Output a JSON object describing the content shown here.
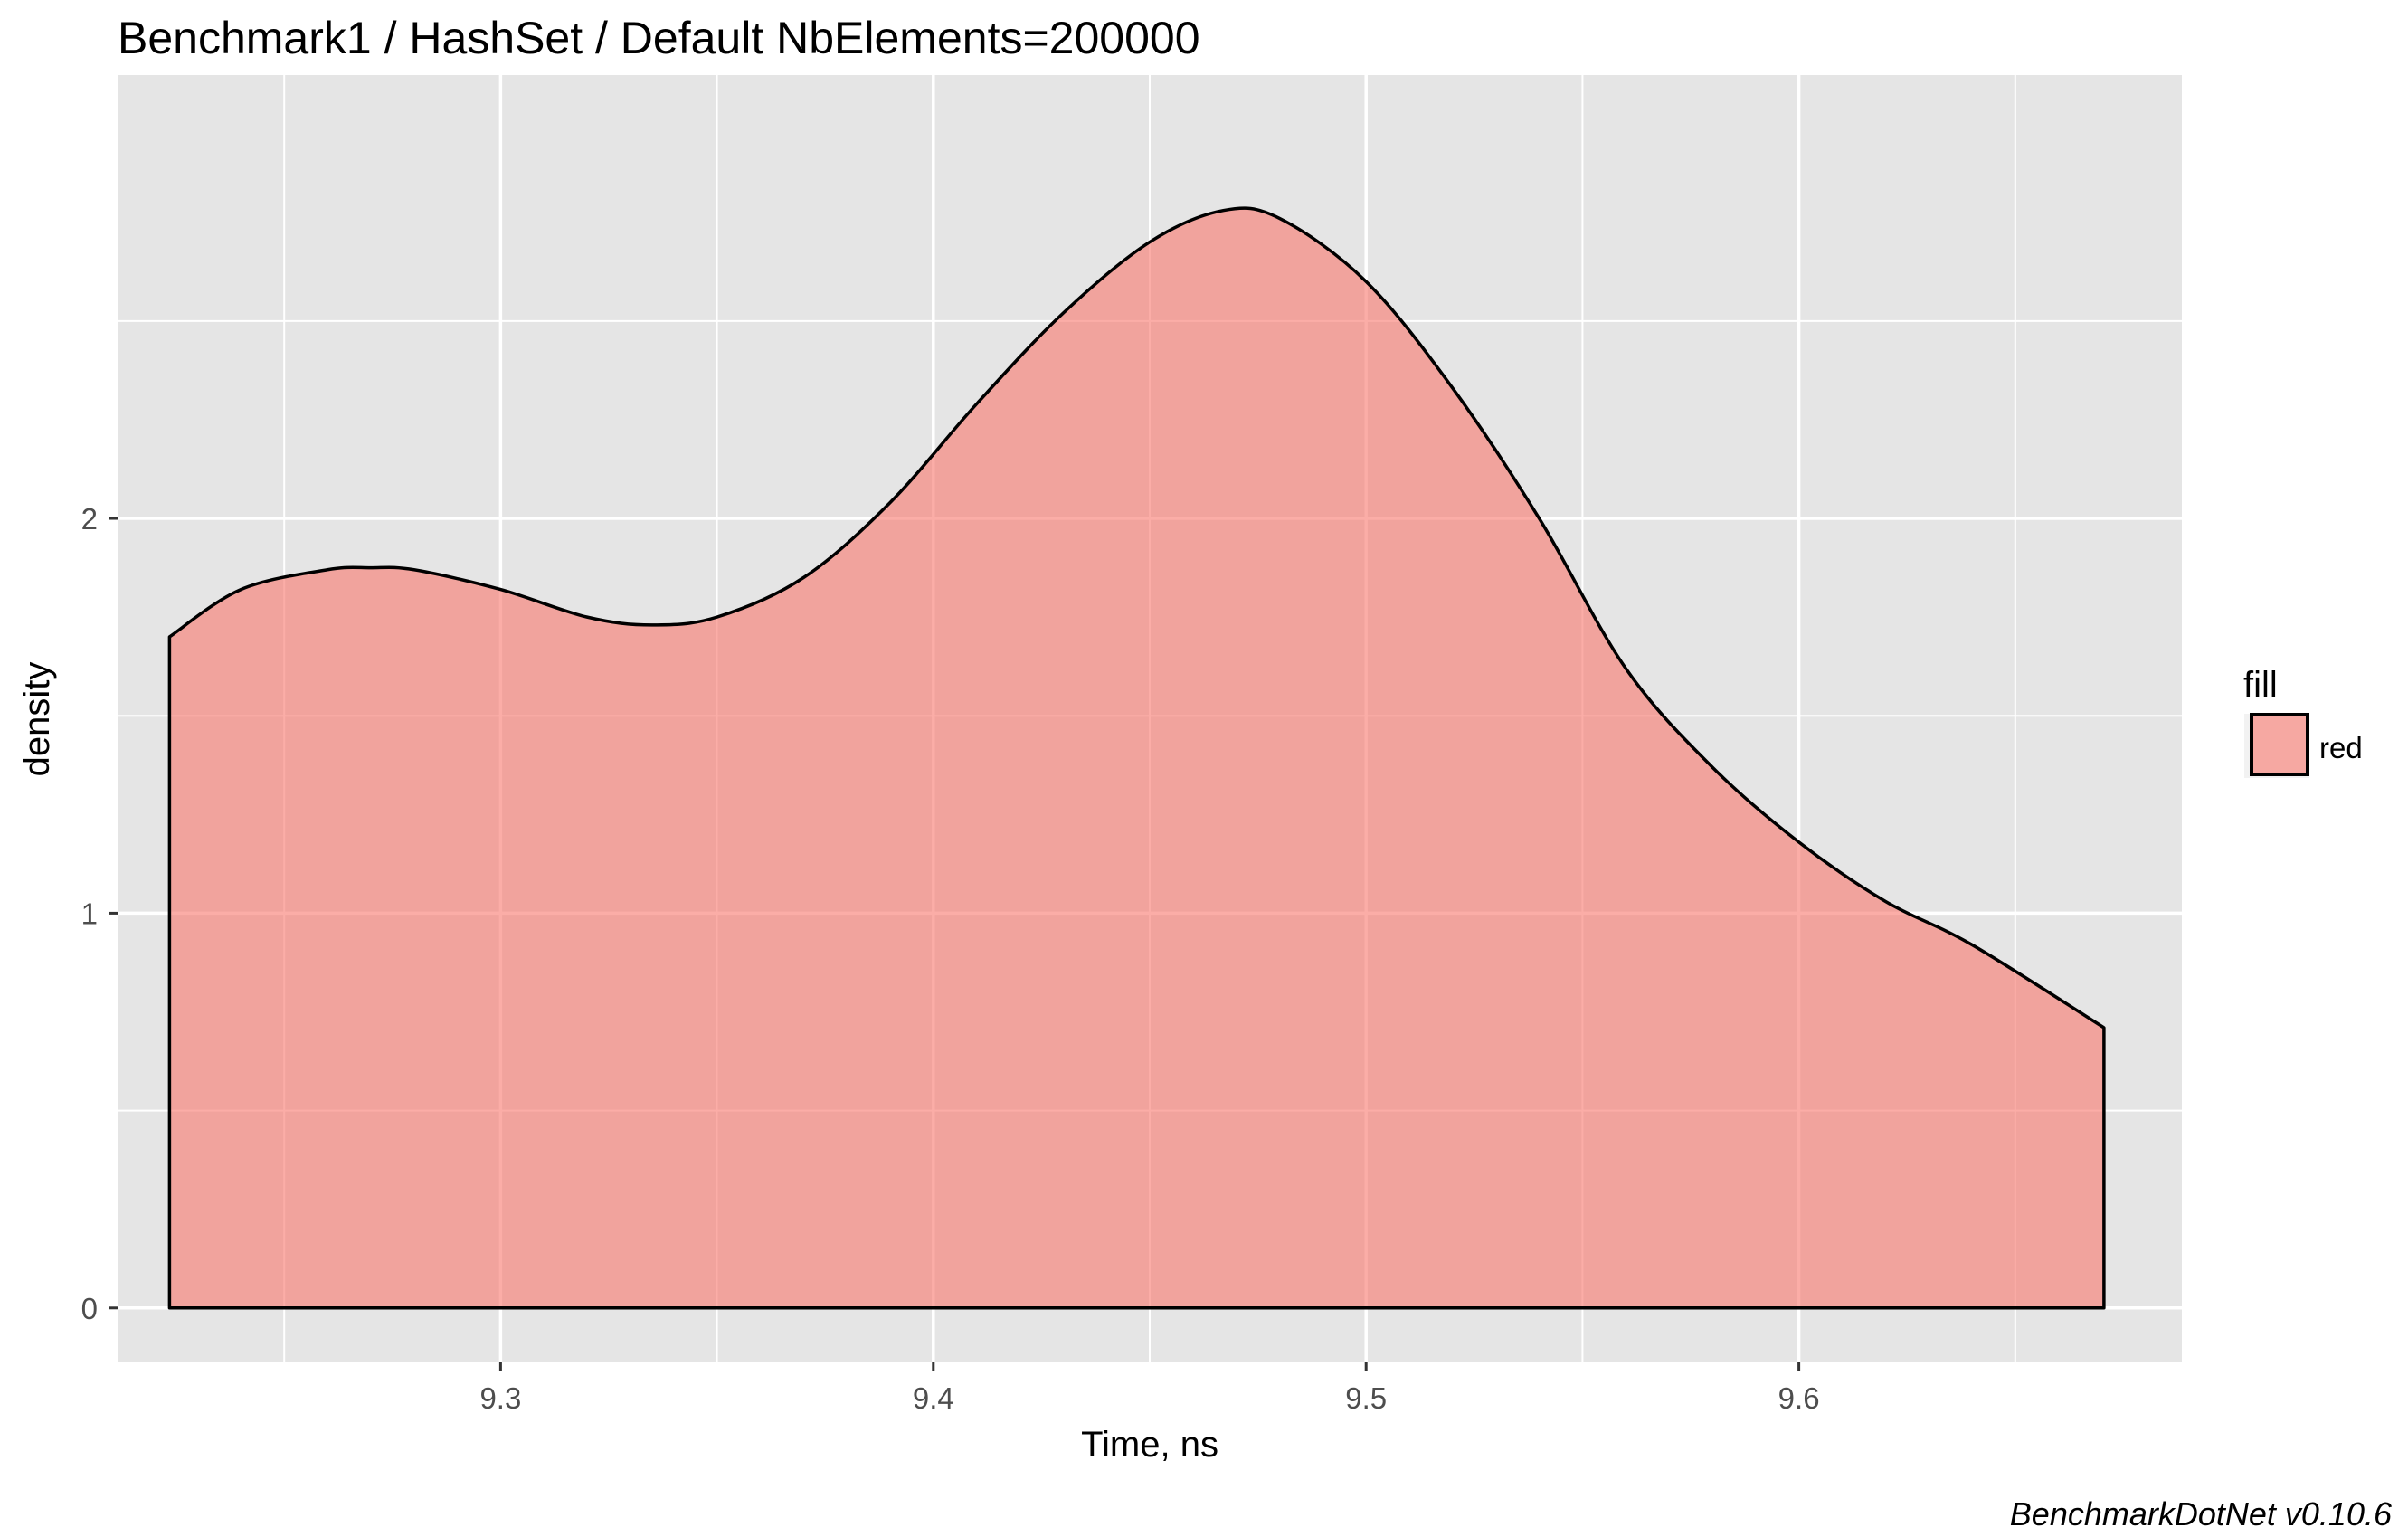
{
  "chart_data": {
    "type": "area",
    "title": "Benchmark1 / HashSet / Default NbElements=200000",
    "xlabel": "Time, ns",
    "ylabel": "density",
    "caption": "BenchmarkDotNet v0.10.6",
    "xlim": [
      9.2115,
      9.6885
    ],
    "ylim": [
      -0.138,
      3.123
    ],
    "x_ticks": [
      9.3,
      9.4,
      9.5,
      9.6
    ],
    "x_tick_labels": [
      "9.3",
      "9.4",
      "9.5",
      "9.6"
    ],
    "x_minor_ticks": [
      9.25,
      9.35,
      9.45,
      9.55,
      9.65
    ],
    "y_ticks": [
      0,
      1,
      2
    ],
    "y_tick_labels": [
      "0",
      "1",
      "2"
    ],
    "y_minor_ticks": [
      0.5,
      1.5,
      2.5
    ],
    "grid": true,
    "panel_background": "#e5e5e5",
    "grid_color": "#ffffff",
    "series": [
      {
        "x": [
          9.2235,
          9.24,
          9.26,
          9.27,
          9.28,
          9.3,
          9.32,
          9.335,
          9.35,
          9.37,
          9.39,
          9.41,
          9.43,
          9.45,
          9.467,
          9.48,
          9.5,
          9.52,
          9.54,
          9.56,
          9.58,
          9.6,
          9.62,
          9.64,
          9.6705
        ],
        "y": [
          1.7,
          1.82,
          1.87,
          1.875,
          1.87,
          1.82,
          1.75,
          1.73,
          1.75,
          1.85,
          2.04,
          2.29,
          2.52,
          2.7,
          2.78,
          2.76,
          2.6,
          2.33,
          2.0,
          1.62,
          1.37,
          1.18,
          1.03,
          0.92,
          0.71
        ],
        "fill": "#f8766d",
        "fill_opacity": 0.6,
        "line_color": "#000000"
      }
    ],
    "legend": {
      "title": "fill",
      "placement": "right",
      "entries": [
        {
          "label": "red",
          "color": "#f8766d"
        }
      ]
    }
  }
}
